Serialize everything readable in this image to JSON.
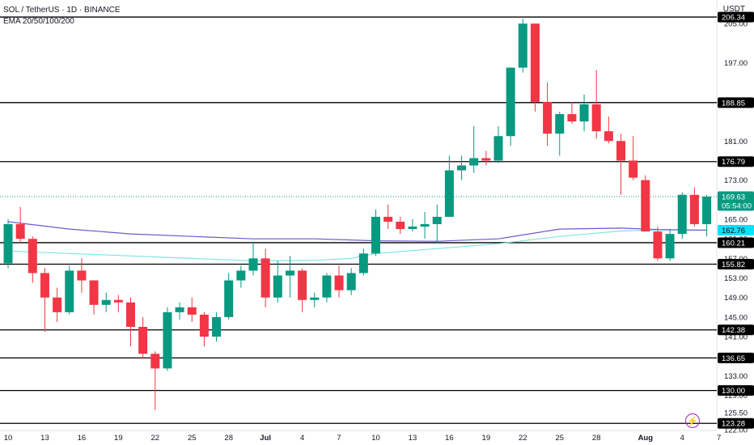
{
  "header": {
    "symbol_line": "SOL / TetherUS · 1D · BINANCE",
    "indicator_line": "EMA 20/50/100/200",
    "unit": "USDT"
  },
  "colors": {
    "up": "#089981",
    "down": "#f23645",
    "ema_blue": "#6a5acd",
    "ema_cyan": "#7fe3e8",
    "line": "#000000"
  },
  "chart_data": {
    "type": "candlestick",
    "ylim": [
      121,
      209
    ],
    "y_ticks": [
      122.0,
      125.5,
      129.0,
      133.0,
      137.0,
      141.0,
      145.0,
      149.0,
      153.0,
      157.0,
      161.0,
      165.0,
      169.0,
      173.0,
      181.0,
      189.0,
      197.0,
      205.0
    ],
    "x_ticks": [
      {
        "label": "10",
        "i": 0
      },
      {
        "label": "13",
        "i": 3
      },
      {
        "label": "16",
        "i": 6
      },
      {
        "label": "19",
        "i": 9
      },
      {
        "label": "22",
        "i": 12
      },
      {
        "label": "25",
        "i": 15
      },
      {
        "label": "28",
        "i": 18
      },
      {
        "label": "Jul",
        "i": 21
      },
      {
        "label": "4",
        "i": 24
      },
      {
        "label": "7",
        "i": 27
      },
      {
        "label": "10",
        "i": 30
      },
      {
        "label": "13",
        "i": 33
      },
      {
        "label": "16",
        "i": 36
      },
      {
        "label": "19",
        "i": 39
      },
      {
        "label": "22",
        "i": 42
      },
      {
        "label": "25",
        "i": 45
      },
      {
        "label": "28",
        "i": 48
      },
      {
        "label": "Aug",
        "i": 52
      },
      {
        "label": "4",
        "i": 55
      },
      {
        "label": "7",
        "i": 58
      }
    ],
    "horizontal_levels": [
      206.34,
      188.85,
      176.79,
      160.21,
      155.82,
      142.38,
      136.65,
      130.0,
      123.28
    ],
    "price_labels": [
      {
        "text": "206.34",
        "value": 206.34,
        "style": "level"
      },
      {
        "text": "188.85",
        "value": 188.85,
        "style": "level"
      },
      {
        "text": "176.79",
        "value": 176.79,
        "style": "level"
      },
      {
        "text": "169.63",
        "value": 169.63,
        "style": "current",
        "sub": "05:54:00"
      },
      {
        "text": "162.77",
        "value": 162.77,
        "style": "ema_blue"
      },
      {
        "text": "162.76",
        "value": 162.76,
        "style": "ema_cyan"
      },
      {
        "text": "160.21",
        "value": 160.21,
        "style": "level"
      },
      {
        "text": "155.82",
        "value": 155.82,
        "style": "level"
      },
      {
        "text": "142.38",
        "value": 142.38,
        "style": "level"
      },
      {
        "text": "136.65",
        "value": 136.65,
        "style": "level"
      },
      {
        "text": "130.00",
        "value": 130.0,
        "style": "level"
      },
      {
        "text": "123.28",
        "value": 123.28,
        "style": "level"
      }
    ],
    "current_price": 169.63,
    "candles": [
      {
        "o": 156.0,
        "h": 165.0,
        "l": 155.0,
        "c": 164.0
      },
      {
        "o": 164.0,
        "h": 167.5,
        "l": 160.0,
        "c": 161.0
      },
      {
        "o": 161.0,
        "h": 161.5,
        "l": 152.0,
        "c": 154.0
      },
      {
        "o": 154.0,
        "h": 155.0,
        "l": 142.0,
        "c": 149.0
      },
      {
        "o": 149.0,
        "h": 151.0,
        "l": 144.0,
        "c": 146.0
      },
      {
        "o": 146.0,
        "h": 155.5,
        "l": 145.5,
        "c": 154.5
      },
      {
        "o": 154.5,
        "h": 157.0,
        "l": 150.0,
        "c": 152.5
      },
      {
        "o": 152.5,
        "h": 152.5,
        "l": 145.5,
        "c": 147.5
      },
      {
        "o": 147.5,
        "h": 150.0,
        "l": 146.0,
        "c": 148.5
      },
      {
        "o": 148.5,
        "h": 149.5,
        "l": 146.0,
        "c": 148.0
      },
      {
        "o": 148.0,
        "h": 149.0,
        "l": 139.0,
        "c": 143.0
      },
      {
        "o": 143.0,
        "h": 145.0,
        "l": 136.5,
        "c": 137.5
      },
      {
        "o": 137.5,
        "h": 138.0,
        "l": 126.0,
        "c": 134.5
      },
      {
        "o": 134.5,
        "h": 147.0,
        "l": 134.0,
        "c": 146.0
      },
      {
        "o": 146.0,
        "h": 148.0,
        "l": 144.5,
        "c": 147.0
      },
      {
        "o": 147.0,
        "h": 149.0,
        "l": 144.0,
        "c": 145.5
      },
      {
        "o": 145.5,
        "h": 146.0,
        "l": 139.0,
        "c": 141.0
      },
      {
        "o": 141.0,
        "h": 146.0,
        "l": 140.0,
        "c": 145.0
      },
      {
        "o": 145.0,
        "h": 154.0,
        "l": 144.5,
        "c": 152.5
      },
      {
        "o": 152.5,
        "h": 155.5,
        "l": 151.0,
        "c": 154.5
      },
      {
        "o": 154.5,
        "h": 160.5,
        "l": 153.5,
        "c": 157.0
      },
      {
        "o": 157.0,
        "h": 159.0,
        "l": 147.0,
        "c": 149.0
      },
      {
        "o": 149.0,
        "h": 156.5,
        "l": 148.0,
        "c": 153.5
      },
      {
        "o": 153.5,
        "h": 157.5,
        "l": 149.0,
        "c": 154.5
      },
      {
        "o": 154.5,
        "h": 155.0,
        "l": 146.0,
        "c": 148.5
      },
      {
        "o": 148.5,
        "h": 150.0,
        "l": 147.0,
        "c": 149.0
      },
      {
        "o": 149.0,
        "h": 154.0,
        "l": 148.0,
        "c": 153.5
      },
      {
        "o": 153.5,
        "h": 155.5,
        "l": 149.0,
        "c": 150.5
      },
      {
        "o": 150.5,
        "h": 155.0,
        "l": 149.5,
        "c": 154.0
      },
      {
        "o": 154.0,
        "h": 159.0,
        "l": 153.5,
        "c": 158.0
      },
      {
        "o": 158.0,
        "h": 167.0,
        "l": 157.5,
        "c": 165.5
      },
      {
        "o": 165.5,
        "h": 168.0,
        "l": 163.0,
        "c": 164.5
      },
      {
        "o": 164.5,
        "h": 165.5,
        "l": 162.0,
        "c": 163.0
      },
      {
        "o": 163.0,
        "h": 165.0,
        "l": 162.5,
        "c": 163.5
      },
      {
        "o": 163.5,
        "h": 166.5,
        "l": 161.0,
        "c": 164.0
      },
      {
        "o": 164.0,
        "h": 168.0,
        "l": 160.0,
        "c": 165.5
      },
      {
        "o": 165.5,
        "h": 178.0,
        "l": 165.5,
        "c": 175.0
      },
      {
        "o": 175.0,
        "h": 178.0,
        "l": 173.0,
        "c": 176.0
      },
      {
        "o": 176.0,
        "h": 184.0,
        "l": 174.5,
        "c": 177.5
      },
      {
        "o": 177.5,
        "h": 179.0,
        "l": 176.0,
        "c": 177.0
      },
      {
        "o": 177.0,
        "h": 184.0,
        "l": 176.5,
        "c": 182.0
      },
      {
        "o": 182.0,
        "h": 196.0,
        "l": 180.0,
        "c": 196.0
      },
      {
        "o": 196.0,
        "h": 206.0,
        "l": 195.0,
        "c": 205.0
      },
      {
        "o": 205.0,
        "h": 205.0,
        "l": 187.0,
        "c": 189.0
      },
      {
        "o": 189.0,
        "h": 193.0,
        "l": 180.0,
        "c": 182.5
      },
      {
        "o": 182.5,
        "h": 187.0,
        "l": 178.0,
        "c": 186.5
      },
      {
        "o": 186.5,
        "h": 189.0,
        "l": 184.5,
        "c": 185.0
      },
      {
        "o": 185.0,
        "h": 190.5,
        "l": 183.0,
        "c": 188.5
      },
      {
        "o": 188.5,
        "h": 195.5,
        "l": 181.5,
        "c": 183.0
      },
      {
        "o": 183.0,
        "h": 186.0,
        "l": 180.5,
        "c": 181.0
      },
      {
        "o": 181.0,
        "h": 182.5,
        "l": 170.0,
        "c": 177.0
      },
      {
        "o": 177.0,
        "h": 182.0,
        "l": 173.0,
        "c": 173.5
      },
      {
        "o": 173.0,
        "h": 174.0,
        "l": 162.5,
        "c": 162.5
      },
      {
        "o": 162.5,
        "h": 163.5,
        "l": 156.5,
        "c": 157.0
      },
      {
        "o": 157.0,
        "h": 163.0,
        "l": 156.5,
        "c": 162.0
      },
      {
        "o": 162.0,
        "h": 170.5,
        "l": 161.0,
        "c": 170.0
      },
      {
        "o": 170.0,
        "h": 171.5,
        "l": 163.5,
        "c": 164.0
      },
      {
        "o": 164.0,
        "h": 170.0,
        "l": 161.5,
        "c": 169.63
      }
    ],
    "ema_blue": [
      [
        0,
        164.5
      ],
      [
        5,
        163.0
      ],
      [
        10,
        162.0
      ],
      [
        15,
        161.5
      ],
      [
        20,
        161.0
      ],
      [
        25,
        161.0
      ],
      [
        30,
        160.6
      ],
      [
        35,
        160.5
      ],
      [
        40,
        161.0
      ],
      [
        45,
        163.0
      ],
      [
        50,
        163.2
      ],
      [
        53,
        162.9
      ],
      [
        57,
        162.77
      ]
    ],
    "ema_cyan": [
      [
        0,
        158.5
      ],
      [
        5,
        158.0
      ],
      [
        10,
        157.5
      ],
      [
        15,
        157.0
      ],
      [
        20,
        156.5
      ],
      [
        25,
        156.6
      ],
      [
        28,
        157.0
      ],
      [
        30,
        158.0
      ],
      [
        35,
        159.0
      ],
      [
        40,
        160.0
      ],
      [
        45,
        161.5
      ],
      [
        50,
        162.6
      ],
      [
        53,
        162.8
      ],
      [
        57,
        162.76
      ]
    ]
  }
}
